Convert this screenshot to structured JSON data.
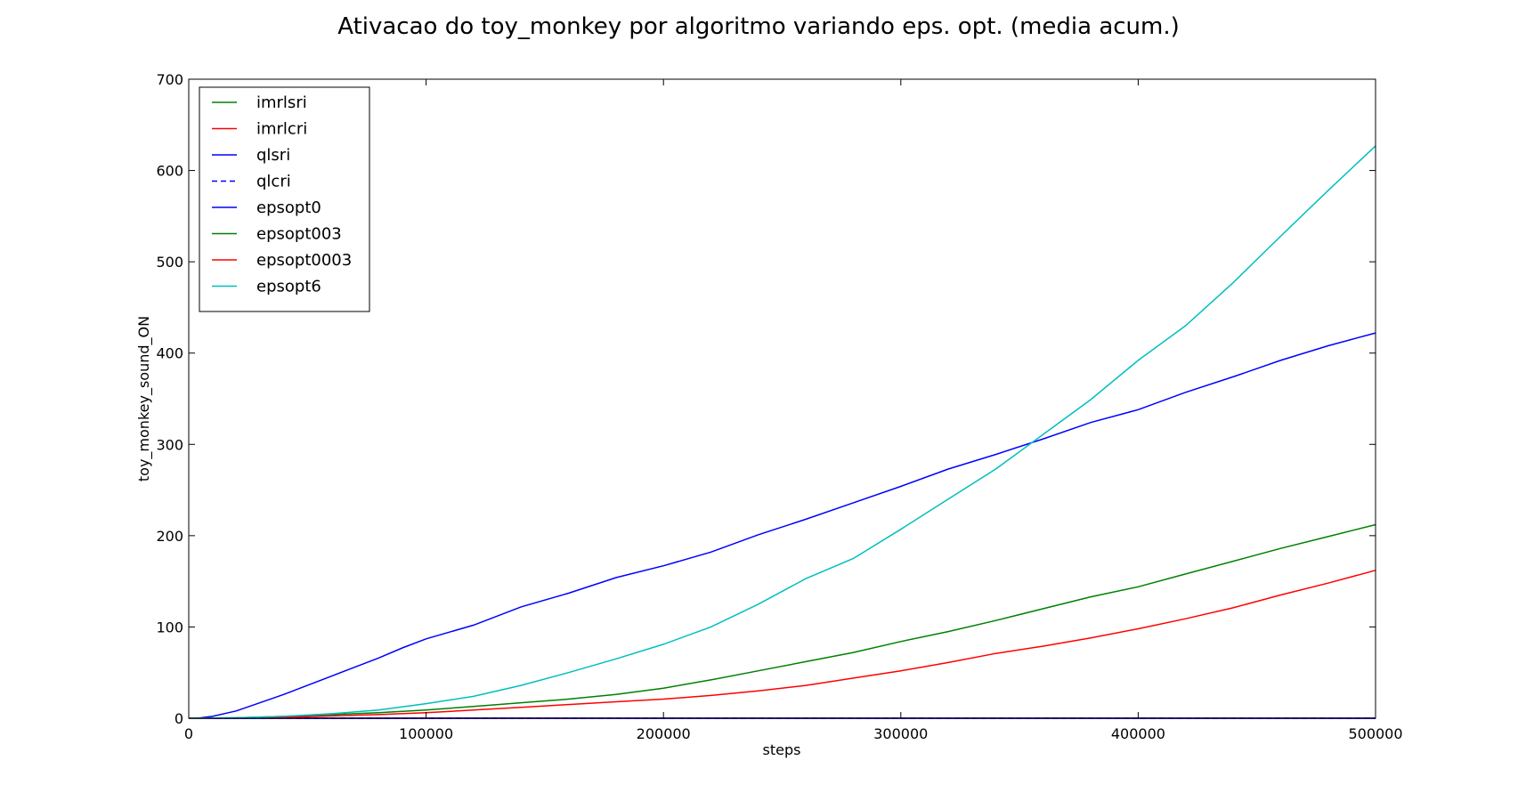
{
  "chart_data": {
    "type": "line",
    "title": "Ativacao do toy_monkey por algoritmo variando eps. opt. (media acum.)",
    "xlabel": "steps",
    "ylabel": "toy_monkey_sound_ON",
    "xlim": [
      0,
      500000
    ],
    "ylim": [
      0,
      700
    ],
    "xticks": [
      0,
      100000,
      200000,
      300000,
      400000,
      500000
    ],
    "yticks": [
      0,
      100,
      200,
      300,
      400,
      500,
      600,
      700
    ],
    "grid": false,
    "legend_position": "upper-left",
    "series": [
      {
        "name": "imrlsri",
        "color": "#008000",
        "dash": "solid",
        "x": [
          0,
          500000
        ],
        "y": [
          0,
          0
        ]
      },
      {
        "name": "imrlcri",
        "color": "#ff0000",
        "dash": "solid",
        "x": [
          0,
          500000
        ],
        "y": [
          0,
          0
        ]
      },
      {
        "name": "qlsri",
        "color": "#0000ff",
        "dash": "solid",
        "x": [
          0,
          500000
        ],
        "y": [
          0,
          0
        ]
      },
      {
        "name": "qlcri",
        "color": "#0000ff",
        "dash": "dashed",
        "x": [
          0,
          500000
        ],
        "y": [
          0,
          0
        ]
      },
      {
        "name": "epsopt0",
        "color": "#0000ff",
        "dash": "solid",
        "x": [
          0,
          5000,
          10000,
          20000,
          30000,
          40000,
          50000,
          60000,
          70000,
          80000,
          90000,
          100000,
          120000,
          140000,
          160000,
          180000,
          200000,
          220000,
          240000,
          260000,
          280000,
          300000,
          320000,
          340000,
          360000,
          380000,
          400000,
          420000,
          440000,
          460000,
          480000,
          500000
        ],
        "y": [
          0,
          0.5,
          2,
          8,
          17,
          26,
          36,
          46,
          56,
          66,
          77,
          87,
          102,
          122,
          137,
          154,
          167,
          182,
          201,
          218,
          236,
          254,
          273,
          289,
          306,
          324,
          338,
          357,
          374,
          392,
          408,
          422
        ]
      },
      {
        "name": "epsopt003",
        "color": "#008000",
        "dash": "solid",
        "x": [
          0,
          20000,
          40000,
          60000,
          80000,
          100000,
          120000,
          140000,
          160000,
          180000,
          200000,
          220000,
          240000,
          260000,
          280000,
          300000,
          320000,
          340000,
          360000,
          380000,
          400000,
          420000,
          440000,
          460000,
          480000,
          500000
        ],
        "y": [
          0,
          0.5,
          2,
          4,
          6,
          9,
          13,
          17,
          21,
          26,
          33,
          42,
          52,
          62,
          72,
          84,
          95,
          107,
          120,
          133,
          144,
          158,
          172,
          186,
          199,
          212
        ]
      },
      {
        "name": "epsopt0003",
        "color": "#ff0000",
        "dash": "solid",
        "x": [
          0,
          20000,
          40000,
          60000,
          80000,
          100000,
          120000,
          140000,
          160000,
          180000,
          200000,
          220000,
          240000,
          260000,
          280000,
          300000,
          320000,
          340000,
          360000,
          380000,
          400000,
          420000,
          440000,
          460000,
          480000,
          500000
        ],
        "y": [
          0,
          0.3,
          1,
          2.5,
          4,
          6,
          9,
          12,
          15,
          18,
          21,
          25,
          30,
          36,
          44,
          52,
          61,
          71,
          79,
          88,
          98,
          109,
          121,
          135,
          148,
          162
        ]
      },
      {
        "name": "epsopt6",
        "color": "#00bfbf",
        "dash": "solid",
        "x": [
          0,
          20000,
          40000,
          60000,
          80000,
          100000,
          120000,
          140000,
          160000,
          180000,
          200000,
          220000,
          240000,
          260000,
          280000,
          300000,
          320000,
          340000,
          360000,
          380000,
          400000,
          420000,
          440000,
          460000,
          480000,
          500000
        ],
        "y": [
          0,
          0.5,
          2,
          5,
          9,
          16,
          24,
          36,
          50,
          65,
          81,
          100,
          125,
          153,
          175,
          207,
          240,
          273,
          311,
          349,
          392,
          430,
          477,
          528,
          578,
          627
        ]
      }
    ]
  }
}
